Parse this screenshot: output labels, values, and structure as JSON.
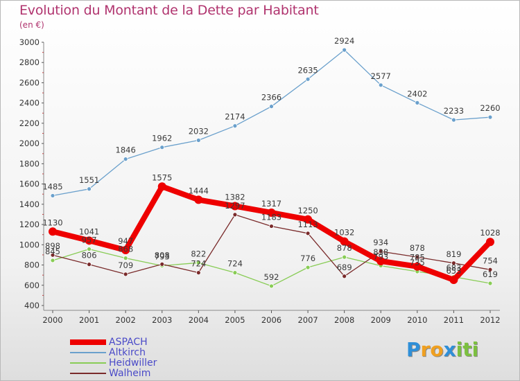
{
  "title": "Evolution du Montant de la Dette par Habitant",
  "subtitle": "(en €)",
  "logo": {
    "letters": [
      "P",
      "r",
      "o",
      "x",
      "i",
      "t",
      "i"
    ],
    "colors": [
      "#2f8fd8",
      "#f0a020",
      "#f0a020",
      "#2f8fd8",
      "#7cc040",
      "#7cc040",
      "#7cc040"
    ]
  },
  "chart_data": {
    "type": "line",
    "x": [
      "2000",
      "2001",
      "2002",
      "2003",
      "2004",
      "2005",
      "2006",
      "2007",
      "2008",
      "2009",
      "2010",
      "2011",
      "2012"
    ],
    "yticks": [
      400,
      600,
      800,
      1000,
      1200,
      1400,
      1600,
      1800,
      2000,
      2200,
      2400,
      2600,
      2800,
      3000
    ],
    "ylim": [
      400,
      3000
    ],
    "grid": false,
    "legend_position": "bottom-left",
    "series": [
      {
        "name": "ASPACH",
        "color": "#ee0000",
        "values": [
          1130,
          1041,
          947,
          1575,
          1444,
          1382,
          1317,
          1250,
          1032,
          838,
          785,
          653,
          1028
        ],
        "labels": [
          "1130",
          "1041",
          "947",
          "1575",
          "1444",
          "1382",
          "1317",
          "1250",
          "1032",
          "838",
          "785",
          "653",
          "1028"
        ]
      },
      {
        "name": "Altkirch",
        "color": "#6aa0cc",
        "values": [
          1485,
          1551,
          1846,
          1962,
          2032,
          2174,
          2366,
          2635,
          2924,
          2577,
          2402,
          2233,
          2260
        ],
        "labels": [
          "1485",
          "1551",
          "1846",
          "1962",
          "2032",
          "2174",
          "2366",
          "2635",
          "2924",
          "2577",
          "2402",
          "2233",
          "2260"
        ]
      },
      {
        "name": "Heidwiller",
        "color": "#88cc55",
        "values": [
          845,
          957,
          868,
          793,
          822,
          724,
          592,
          776,
          878,
          793,
          735,
          683,
          619
        ],
        "labels": [
          "845",
          "957",
          "868",
          "793",
          "822",
          "724",
          "592",
          "776",
          "878",
          "793",
          "735",
          "683",
          "619"
        ]
      },
      {
        "name": "Walheim",
        "color": "#7a2b2b",
        "values": [
          898,
          806,
          709,
          808,
          724,
          1297,
          1183,
          1113,
          689,
          934,
          878,
          819,
          754
        ],
        "labels": [
          "898",
          "806",
          "709",
          "808",
          "724",
          "1297",
          "1183",
          "1113",
          "689",
          "934",
          "878",
          "819",
          "754"
        ]
      }
    ]
  }
}
